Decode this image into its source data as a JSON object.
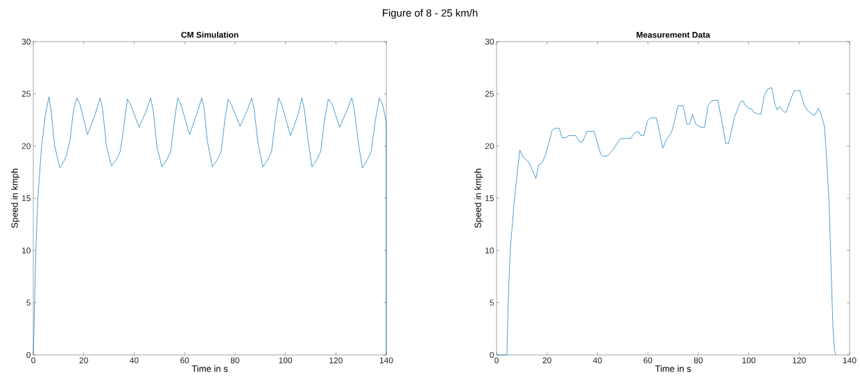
{
  "chart_data": [
    {
      "type": "line",
      "title": "CM Simulation",
      "xlabel": "Time in s",
      "ylabel": "Speed in kmph",
      "annotations": [
        "Figure of 8 - 25 km/h"
      ],
      "xlim": [
        0,
        140
      ],
      "ylim": [
        0,
        30
      ],
      "xticks": [
        0,
        20,
        40,
        60,
        80,
        100,
        120,
        140
      ],
      "yticks": [
        0,
        5,
        10,
        15,
        20,
        25,
        30
      ],
      "grid": false,
      "series": [
        {
          "color": "#0072bd",
          "x": [
            0,
            1,
            1.8,
            3.3,
            4.8,
            6.2,
            7,
            8.5,
            10.5,
            12,
            13,
            14.5,
            16,
            17.3,
            18.5,
            21.5,
            24.5,
            26.5,
            27.5,
            29,
            31,
            33,
            34.5,
            36,
            37.3,
            38.5,
            42,
            45,
            46.5,
            47.5,
            49,
            51,
            53,
            54.5,
            56,
            57.3,
            58.5,
            62,
            65,
            66.8,
            67.8,
            69,
            71,
            73,
            74.5,
            76,
            77.3,
            78.5,
            82,
            85,
            86.6,
            87.6,
            89,
            91,
            93,
            94.5,
            96,
            97.3,
            98.5,
            102,
            105,
            106.5,
            107.5,
            109,
            110.5,
            112.5,
            114,
            115.5,
            117,
            118.5,
            121.5,
            124.5,
            126.3,
            127.3,
            128.8,
            130.5,
            132.5,
            134,
            135.7,
            137.2,
            138.5,
            140,
            140
          ],
          "values": [
            0,
            10,
            15,
            20,
            23,
            24.7,
            23.5,
            20,
            17.9,
            18.5,
            19,
            20.5,
            23.5,
            24.6,
            24,
            21.1,
            23,
            24.6,
            23.5,
            20,
            18.1,
            18.7,
            19.5,
            22,
            24.5,
            24,
            21.8,
            23.5,
            24.6,
            23.5,
            20,
            18,
            18.7,
            19.5,
            22.5,
            24.6,
            24,
            21.1,
            23.2,
            24.6,
            23.5,
            20.5,
            18,
            18.7,
            19.5,
            22.5,
            24.5,
            24,
            21.9,
            23.5,
            24.6,
            23.5,
            20.5,
            18,
            18.7,
            19.5,
            22.5,
            24.6,
            24,
            21,
            23,
            24.6,
            23.5,
            20.5,
            18,
            18.7,
            19.5,
            22.5,
            24.5,
            24,
            21.8,
            23.5,
            24.6,
            23.5,
            20.5,
            17.9,
            18.7,
            19.5,
            22.5,
            24.6,
            24,
            22.3,
            0
          ]
        }
      ]
    },
    {
      "type": "line",
      "title": "Measurement Data",
      "xlabel": "Time in s",
      "ylabel": "Speed in kmph",
      "xlim": [
        0,
        140
      ],
      "ylim": [
        0,
        30
      ],
      "xticks": [
        0,
        20,
        40,
        60,
        80,
        100,
        120,
        140
      ],
      "yticks": [
        0,
        5,
        10,
        15,
        20,
        25,
        30
      ],
      "grid": false,
      "series": [
        {
          "color": "#0072bd",
          "x": [
            0,
            4.1,
            4.6,
            5.4,
            7.1,
            9.2,
            10.7,
            12.6,
            14.4,
            15.6,
            16.7,
            18.1,
            19.3,
            20.4,
            22.0,
            23.1,
            24.9,
            25.9,
            27.5,
            28.6,
            31.4,
            33.0,
            34.1,
            35.8,
            38.7,
            39.5,
            41.3,
            42.4,
            44.2,
            46.0,
            47.9,
            49.2,
            53.2,
            54.5,
            55.6,
            56.5,
            57.2,
            58.4,
            59.8,
            61.0,
            63.3,
            64.4,
            65.9,
            67.6,
            69.4,
            70.8,
            71.9,
            74.0,
            75.5,
            76.6,
            77.7,
            79.0,
            80.9,
            82.5,
            83.9,
            85.4,
            87.7,
            89.1,
            90.9,
            92.0,
            94.4,
            95.7,
            96.9,
            97.8,
            98.7,
            100.1,
            101.0,
            101.9,
            103.3,
            104.9,
            106.1,
            107.5,
            109.1,
            110.4,
            111.3,
            112.2,
            114.0,
            114.9,
            116.6,
            118.0,
            120.3,
            122.1,
            123.5,
            125.6,
            126.2,
            127.6,
            128.5,
            129.9,
            130.6,
            131.7,
            132.0,
            132.7,
            133.4,
            134.0,
            134.5
          ],
          "values": [
            0,
            0,
            5,
            10,
            15,
            19.6,
            18.9,
            18.5,
            17.6,
            16.9,
            18.2,
            18.4,
            19.1,
            20.0,
            21.5,
            21.7,
            21.7,
            20.8,
            20.8,
            21.0,
            21.0,
            20.4,
            20.4,
            21.4,
            21.4,
            20.7,
            19.2,
            19.0,
            19.1,
            19.6,
            20.3,
            20.7,
            20.75,
            21.2,
            21.35,
            21.35,
            21.0,
            21.0,
            22.4,
            22.7,
            22.7,
            21.6,
            19.8,
            20.7,
            21.3,
            22.6,
            23.85,
            23.85,
            22.1,
            22.1,
            23.05,
            22.1,
            21.8,
            21.8,
            23.9,
            24.35,
            24.4,
            22.7,
            20.25,
            20.25,
            22.8,
            23.6,
            24.3,
            24.3,
            23.85,
            23.6,
            23.6,
            23.25,
            23.1,
            23.05,
            24.8,
            25.45,
            25.6,
            24.0,
            23.45,
            23.8,
            23.25,
            23.25,
            24.45,
            25.3,
            25.3,
            23.85,
            23.35,
            22.95,
            22.95,
            23.6,
            23.2,
            22.0,
            20.0,
            15.4,
            13.6,
            8.1,
            2.6,
            0.5,
            0
          ]
        }
      ]
    }
  ]
}
